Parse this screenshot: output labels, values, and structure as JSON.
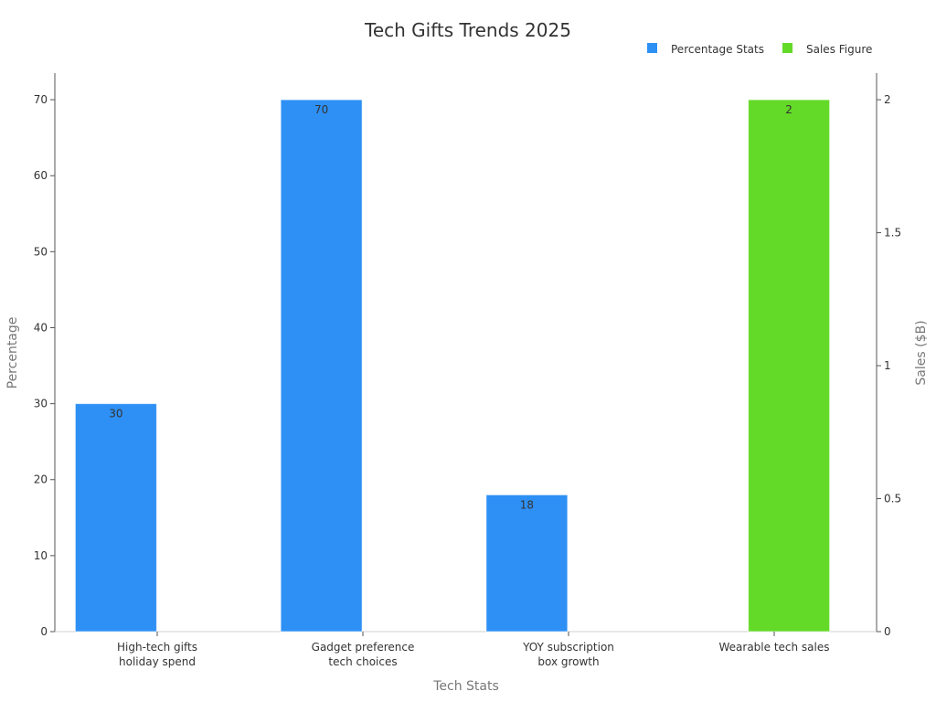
{
  "chart_data": {
    "type": "bar",
    "title": "Tech Gifts Trends 2025",
    "xlabel": "Tech Stats",
    "ylabel_left": "Percentage",
    "ylabel_right": "Sales ($B)",
    "categories": [
      [
        "High-tech gifts",
        "holiday spend"
      ],
      [
        "Gadget preference",
        "tech choices"
      ],
      [
        "YOY subscription",
        "box growth"
      ],
      [
        "Wearable tech sales"
      ]
    ],
    "left_ticks": [
      "0",
      "10",
      "20",
      "30",
      "40",
      "50",
      "60",
      "70"
    ],
    "right_ticks": [
      "0",
      "0.5",
      "1",
      "1.5",
      "2"
    ],
    "ylim_left": [
      0,
      73.5
    ],
    "ylim_right": [
      0,
      2.1
    ],
    "legend_position": "top-right",
    "series": [
      {
        "name": "Percentage Stats",
        "axis": "left",
        "color": "#2e90f5",
        "values": [
          30,
          70,
          18,
          null
        ],
        "labels": [
          "30",
          "70",
          "18",
          ""
        ]
      },
      {
        "name": "Sales Figure",
        "axis": "right",
        "color": "#64da28",
        "values": [
          null,
          null,
          null,
          2
        ],
        "labels": [
          "",
          "",
          "",
          "2"
        ]
      }
    ]
  }
}
